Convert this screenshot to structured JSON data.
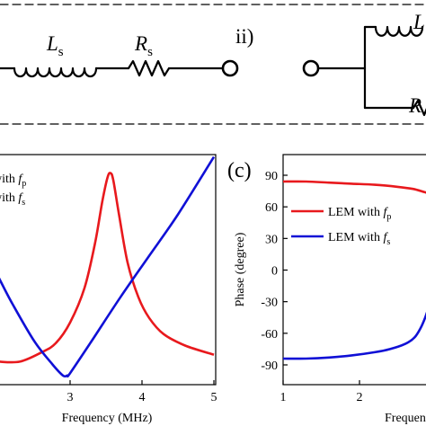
{
  "circuits": {
    "left": {
      "inductor_label": "L",
      "inductor_sub": "s",
      "resistor_label": "R",
      "resistor_sub": "s"
    },
    "right": {
      "marker": "ii)",
      "inductor_label": "L",
      "resistor_label": "R"
    }
  },
  "chart_data": [
    {
      "type": "line",
      "title": "",
      "xlabel": "Frequency (MHz)",
      "ylabel": "",
      "xlim": [
        2,
        5
      ],
      "xticks": [
        3,
        4,
        5
      ],
      "ylim": [
        0,
        1
      ],
      "grid": false,
      "legend_position": "top-left",
      "legend": [
        {
          "prefix": "with ",
          "var": "f",
          "sub": "p",
          "color": "#e8191d"
        },
        {
          "prefix": "with ",
          "var": "f",
          "sub": "s",
          "color": "#1010d6"
        }
      ],
      "series": [
        {
          "color": "#e8191d",
          "x": [
            2.0,
            2.3,
            2.6,
            2.8,
            3.0,
            3.2,
            3.35,
            3.45,
            3.52,
            3.56,
            3.6,
            3.68,
            3.8,
            3.95,
            4.1,
            4.3,
            4.6,
            5.0
          ],
          "y": [
            0.1,
            0.1,
            0.14,
            0.18,
            0.27,
            0.42,
            0.62,
            0.8,
            0.9,
            0.92,
            0.89,
            0.74,
            0.53,
            0.38,
            0.29,
            0.22,
            0.17,
            0.13
          ]
        },
        {
          "color": "#1010d6",
          "x": [
            2.0,
            2.2,
            2.5,
            2.75,
            2.9,
            2.96,
            3.0,
            3.3,
            3.7,
            4.1,
            4.5,
            5.0
          ],
          "y": [
            0.47,
            0.35,
            0.19,
            0.09,
            0.04,
            0.04,
            0.05,
            0.19,
            0.38,
            0.56,
            0.74,
            0.99
          ]
        }
      ]
    },
    {
      "type": "line",
      "panel_label": "(c)",
      "title": "",
      "xlabel": "Frequenc",
      "ylabel": "Phase (degree)",
      "xlim": [
        1,
        3
      ],
      "xticks": [
        1,
        2
      ],
      "ylim": [
        -90,
        90
      ],
      "yticks": [
        90,
        60,
        30,
        0,
        -30,
        -60,
        -90
      ],
      "grid": false,
      "legend_position": "top-left",
      "legend": [
        {
          "prefix": "LEM with ",
          "var": "f",
          "sub": "p",
          "color": "#e8191d"
        },
        {
          "prefix": "LEM with ",
          "var": "f",
          "sub": "s",
          "color": "#1010d6"
        }
      ],
      "series": [
        {
          "color": "#e8191d",
          "x": [
            1.0,
            1.3,
            1.6,
            1.9,
            2.2,
            2.5,
            2.7,
            2.85,
            2.95,
            3.0
          ],
          "y": [
            84,
            84,
            83,
            82,
            81,
            79,
            77,
            74,
            72,
            71
          ]
        },
        {
          "color": "#1010d6",
          "x": [
            1.0,
            1.3,
            1.6,
            1.9,
            2.2,
            2.4,
            2.6,
            2.72,
            2.8,
            2.86,
            2.92,
            2.97,
            3.0
          ],
          "y": [
            -84,
            -84,
            -83,
            -81,
            -78,
            -75,
            -70,
            -64,
            -55,
            -45,
            -32,
            -20,
            -14
          ]
        }
      ]
    }
  ]
}
